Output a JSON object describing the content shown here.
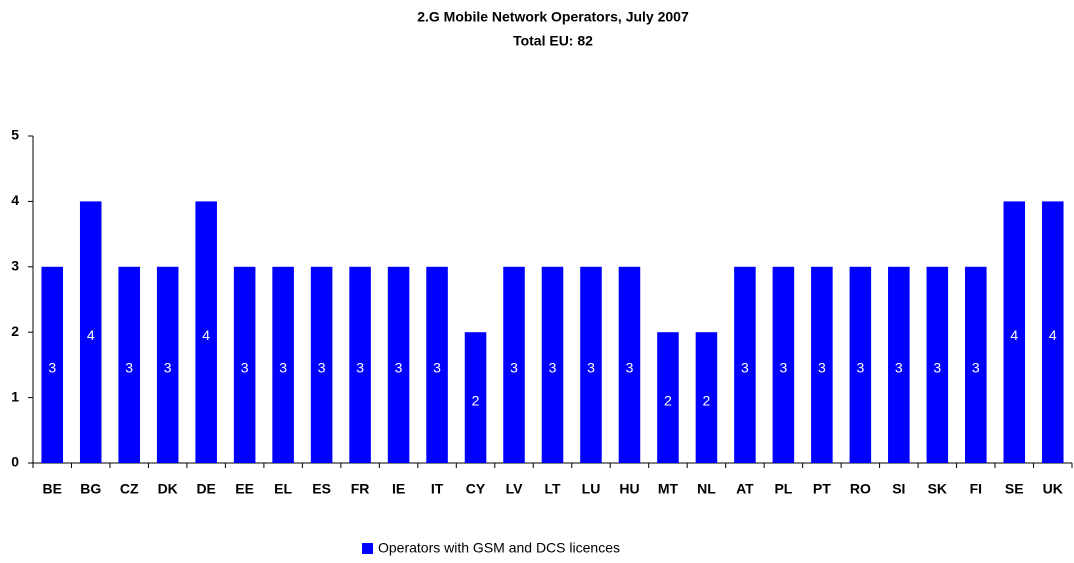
{
  "chart_data": {
    "type": "bar",
    "title": "2.G Mobile Network Operators, July 2007",
    "subtitle": "Total EU: 82",
    "categories": [
      "BE",
      "BG",
      "CZ",
      "DK",
      "DE",
      "EE",
      "EL",
      "ES",
      "FR",
      "IE",
      "IT",
      "CY",
      "LV",
      "LT",
      "LU",
      "HU",
      "MT",
      "NL",
      "AT",
      "PL",
      "PT",
      "RO",
      "SI",
      "SK",
      "FI",
      "SE",
      "UK"
    ],
    "series": [
      {
        "name": "Operators with GSM and DCS licences",
        "color": "#0000ff",
        "values": [
          3,
          4,
          3,
          3,
          4,
          3,
          3,
          3,
          3,
          3,
          3,
          2,
          3,
          3,
          3,
          3,
          2,
          2,
          3,
          3,
          3,
          3,
          3,
          3,
          3,
          4,
          4
        ]
      }
    ],
    "ylim": [
      0,
      5
    ],
    "yticks": [
      0,
      1,
      2,
      3,
      4,
      5
    ],
    "grid": false,
    "legend": "bottom"
  }
}
